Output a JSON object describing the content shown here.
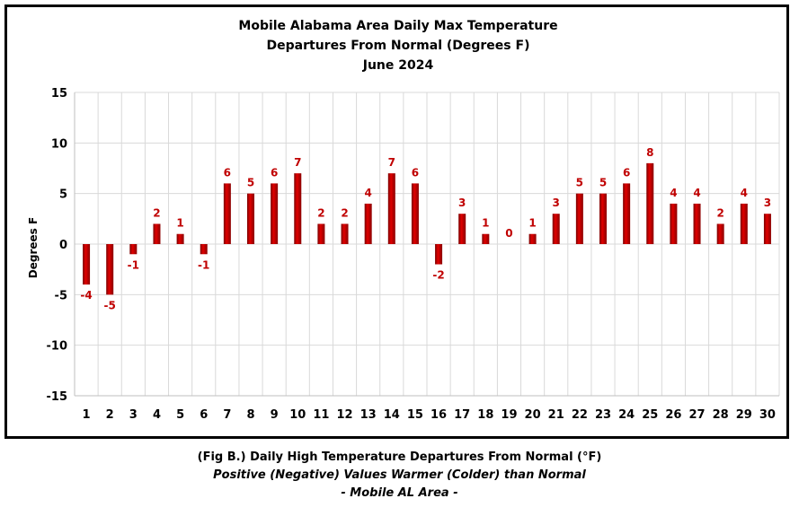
{
  "chart_data": {
    "type": "bar",
    "title": [
      "Mobile Alabama Area Daily Max Temperature",
      "Departures From Normal (Degrees F)",
      "June 2024"
    ],
    "xlabel": "",
    "ylabel": "Degrees F",
    "ylim": [
      -15,
      15
    ],
    "yticks": [
      15,
      10,
      5,
      0,
      -5,
      -10,
      -15
    ],
    "grid": true,
    "legend": "none",
    "categories": [
      "1",
      "2",
      "3",
      "4",
      "5",
      "6",
      "7",
      "8",
      "9",
      "10",
      "11",
      "12",
      "13",
      "14",
      "15",
      "16",
      "17",
      "18",
      "19",
      "20",
      "21",
      "22",
      "23",
      "24",
      "25",
      "26",
      "27",
      "28",
      "29",
      "30"
    ],
    "series": [
      {
        "values": [
          -4,
          -5,
          -1,
          2,
          1,
          -1,
          6,
          5,
          6,
          7,
          2,
          2,
          4,
          7,
          6,
          -2,
          3,
          1,
          0,
          1,
          3,
          5,
          5,
          6,
          8,
          4,
          4,
          2,
          4,
          3
        ]
      }
    ],
    "bar_color": "#c00000",
    "label_color": "#c00000"
  },
  "caption": {
    "line1": "(Fig B.) Daily High Temperature Departures From Normal (°F)",
    "line2": "Positive (Negative) Values Warmer (Colder) than Normal",
    "line3": "- Mobile AL Area -"
  }
}
